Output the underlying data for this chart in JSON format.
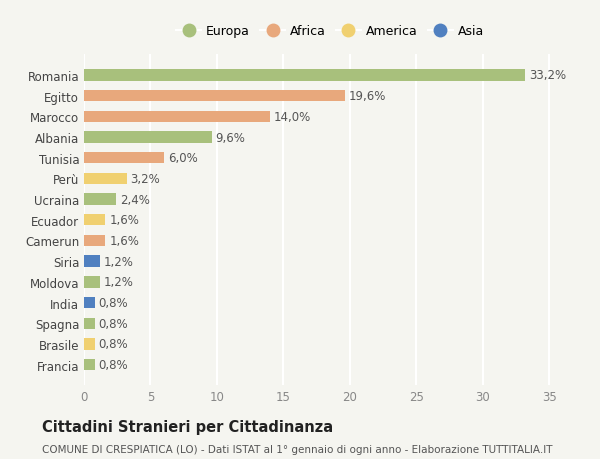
{
  "countries": [
    "Romania",
    "Egitto",
    "Marocco",
    "Albania",
    "Tunisia",
    "Perù",
    "Ucraina",
    "Ecuador",
    "Camerun",
    "Siria",
    "Moldova",
    "India",
    "Spagna",
    "Brasile",
    "Francia"
  ],
  "values": [
    33.2,
    19.6,
    14.0,
    9.6,
    6.0,
    3.2,
    2.4,
    1.6,
    1.6,
    1.2,
    1.2,
    0.8,
    0.8,
    0.8,
    0.8
  ],
  "continents": [
    "Europa",
    "Africa",
    "Africa",
    "Europa",
    "Africa",
    "America",
    "Europa",
    "America",
    "Africa",
    "Asia",
    "Europa",
    "Asia",
    "Europa",
    "America",
    "Europa"
  ],
  "continent_colors": {
    "Europa": "#a8c07c",
    "Africa": "#e8a87c",
    "America": "#f0d070",
    "Asia": "#5080c0"
  },
  "legend_order": [
    "Europa",
    "Africa",
    "America",
    "Asia"
  ],
  "title": "Cittadini Stranieri per Cittadinanza",
  "subtitle": "COMUNE DI CRESPIATICA (LO) - Dati ISTAT al 1° gennaio di ogni anno - Elaborazione TUTTITALIA.IT",
  "xlim": [
    0,
    37
  ],
  "xticks": [
    0,
    5,
    10,
    15,
    20,
    25,
    30,
    35
  ],
  "background_color": "#f5f5f0",
  "bar_height": 0.55,
  "label_fontsize": 8.5,
  "tick_fontsize": 8.5,
  "title_fontsize": 10.5,
  "subtitle_fontsize": 7.5
}
